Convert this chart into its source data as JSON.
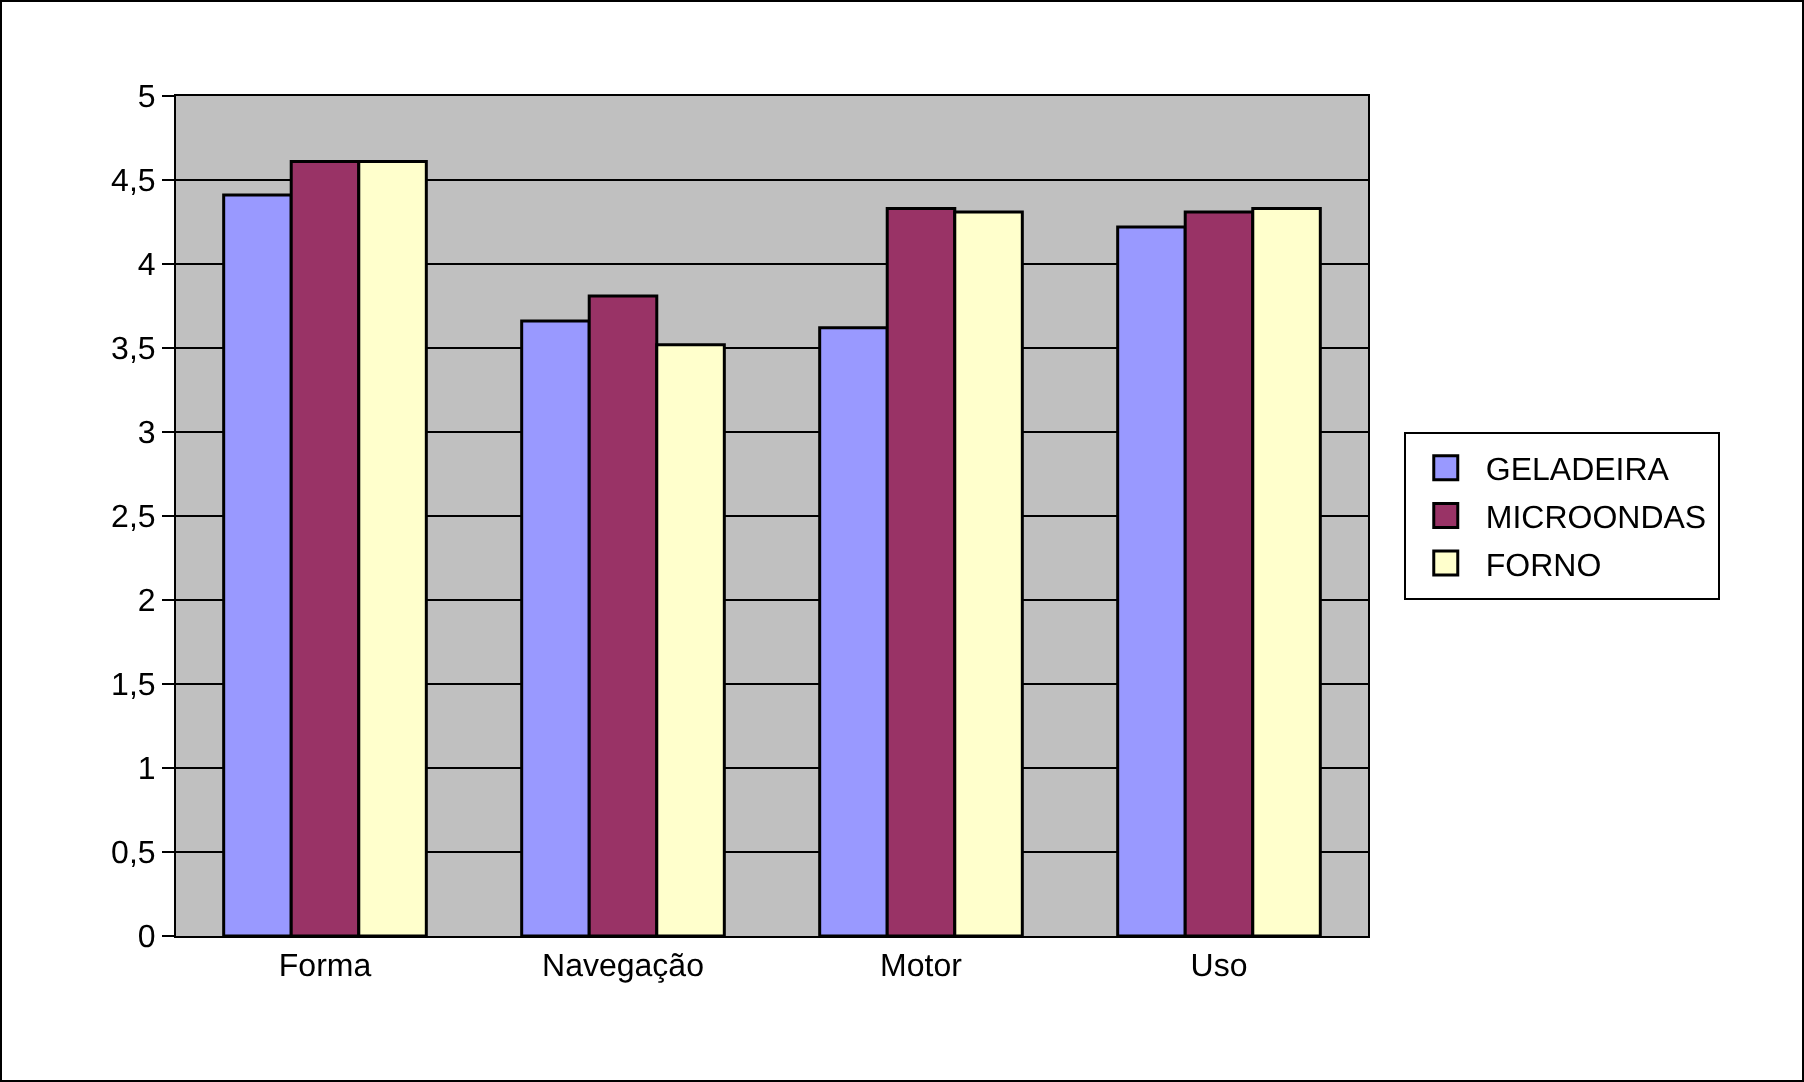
{
  "chart_data": {
    "type": "bar",
    "categories": [
      "Forma",
      "Navegação",
      "Motor",
      "Uso"
    ],
    "series": [
      {
        "name": "GELADEIRA",
        "color": "#9999ff",
        "values": [
          4.41,
          3.66,
          3.62,
          4.22
        ]
      },
      {
        "name": "MICROONDAS",
        "color": "#993366",
        "values": [
          4.61,
          3.81,
          4.33,
          4.31
        ]
      },
      {
        "name": "FORNO",
        "color": "#ffffcc",
        "values": [
          4.61,
          3.52,
          4.31,
          4.33
        ]
      }
    ],
    "ylim": [
      0,
      5
    ],
    "yticks": [
      0,
      {
        "value": 0.5,
        "label": "0,5"
      },
      1,
      {
        "value": 1.5,
        "label": "1,5"
      },
      2,
      {
        "value": 2.5,
        "label": "2,5"
      },
      3,
      {
        "value": 3.5,
        "label": "3,5"
      },
      4,
      {
        "value": 4.5,
        "label": "4,5"
      },
      5
    ],
    "grid": "y",
    "legend": "right"
  }
}
